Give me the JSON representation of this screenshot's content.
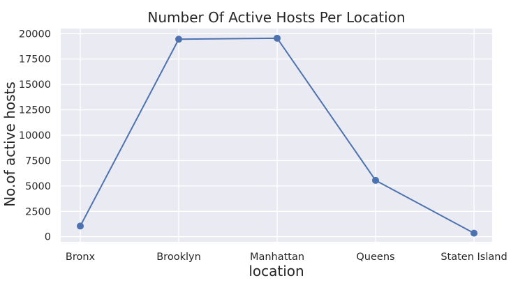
{
  "chart_data": {
    "type": "line",
    "title": "Number Of Active Hosts Per Location",
    "xlabel": "location",
    "ylabel": "No.of active hosts",
    "categories": [
      "Bronx",
      "Brooklyn",
      "Manhattan",
      "Queens",
      "Staten Island"
    ],
    "values": [
      1050,
      19450,
      19550,
      5550,
      350
    ],
    "ylim": [
      -500,
      20500
    ],
    "yticks": [
      "0",
      "2500",
      "5000",
      "7500",
      "10000",
      "12500",
      "15000",
      "17500",
      "20000"
    ],
    "grid": true,
    "colors": {
      "line": "#4c72b0",
      "plot_bg": "#eaeaf2",
      "grid": "#ffffff",
      "text": "#262626"
    }
  }
}
